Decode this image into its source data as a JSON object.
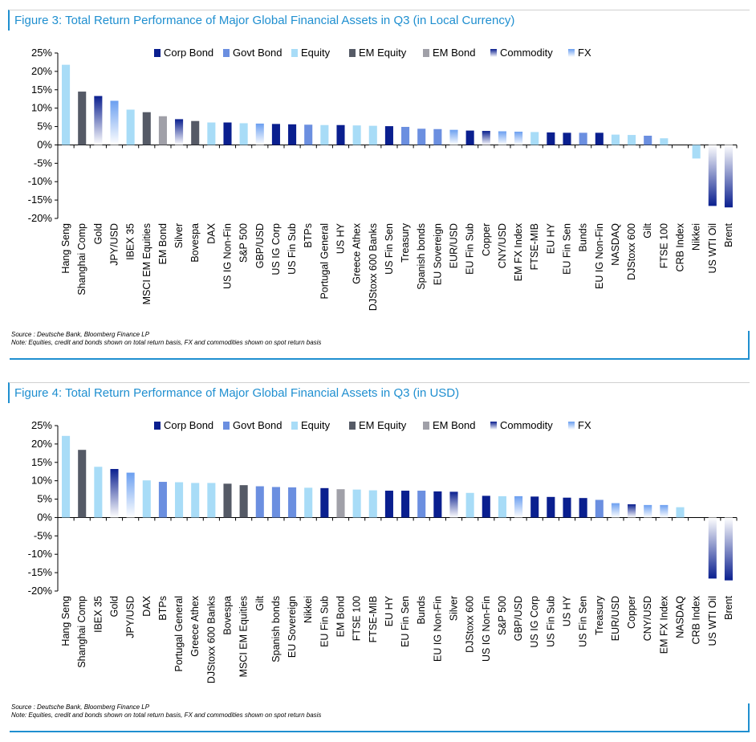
{
  "colors": {
    "Corp Bond": "#0a1f8f",
    "Govt Bond": "#6b8fe0",
    "Equity": "#a8dcf7",
    "EM Equity": "#555a66",
    "EM Bond": "#a0a0a8",
    "Commodity": "#0a1f8f",
    "FX": "#6b9ff0",
    "title": "#1f8fd0"
  },
  "legend": [
    "Corp Bond",
    "Govt Bond",
    "Equity",
    "EM Equity",
    "EM Bond",
    "Commodity",
    "FX"
  ],
  "figures": [
    {
      "title": "Figure 3: Total Return Performance of Major Global Financial Assets in Q3 (in Local Currency)",
      "source": "Source : Deutsche Bank, Bloomberg Finance LP",
      "note": "Note: Equities, credit and bonds shown on total return basis, FX and commodities shown on spot return basis"
    },
    {
      "title": "Figure 4: Total Return Performance of Major Global Financial Assets in Q3 (in USD)",
      "source": "Source : Deutsche Bank, Bloomberg Finance LP",
      "note": "Note: Equities, credit and bonds shown on total return basis, FX and commodities shown on spot return basis"
    }
  ],
  "chart_data": [
    {
      "type": "bar",
      "title": "Figure 3: Total Return Performance of Major Global Financial Assets in Q3 (in Local Currency)",
      "ylim": [
        -20,
        25
      ],
      "yticks": [
        "25%",
        "20%",
        "15%",
        "10%",
        "5%",
        "0%",
        "-5%",
        "-10%",
        "-15%",
        "-20%"
      ],
      "legend_position": "top",
      "categories": [
        "Hang Seng",
        "Shanghai Comp",
        "Gold",
        "JPY/USD",
        "IBEX 35",
        "MSCI EM Equities",
        "EM Bond",
        "Silver",
        "Bovespa",
        "DAX",
        "US IG Non-Fin",
        "S&P 500",
        "GBP/USD",
        "US IG Corp",
        "US Fin Sub",
        "BTPs",
        "Portugal General",
        "US HY",
        "Greece Athex",
        "DJStoxx 600 Banks",
        "US Fin Sen",
        "Treasury",
        "Spanish bonds",
        "EU Sovereign",
        "EUR/USD",
        "EU Fin Sub",
        "Copper",
        "CNY/USD",
        "EM FX Index",
        "FTSE-MIB",
        "EU HY",
        "EU Fin Sen",
        "Bunds",
        "EU IG Non-Fin",
        "NASDAQ",
        "DJStoxx 600",
        "Gilt",
        "FTSE 100",
        "CRB Index",
        "Nikkei",
        "US WTI Oil",
        "Brent"
      ],
      "values": [
        21.8,
        14.5,
        13.3,
        12.0,
        9.6,
        8.9,
        7.8,
        7.0,
        6.5,
        6.1,
        6.1,
        5.9,
        5.8,
        5.7,
        5.6,
        5.5,
        5.4,
        5.4,
        5.3,
        5.2,
        5.1,
        4.9,
        4.4,
        4.3,
        4.1,
        3.9,
        3.8,
        3.7,
        3.6,
        3.5,
        3.4,
        3.3,
        3.3,
        3.3,
        2.8,
        2.7,
        2.5,
        1.8,
        0.0,
        -3.7,
        -16.6,
        -17.0
      ],
      "classes": [
        "Equity",
        "EM Equity",
        "Commodity",
        "FX",
        "Equity",
        "EM Equity",
        "EM Bond",
        "Commodity",
        "EM Equity",
        "Equity",
        "Corp Bond",
        "Equity",
        "FX",
        "Corp Bond",
        "Corp Bond",
        "Govt Bond",
        "Equity",
        "Corp Bond",
        "Equity",
        "Equity",
        "Corp Bond",
        "Govt Bond",
        "Govt Bond",
        "Govt Bond",
        "FX",
        "Corp Bond",
        "Commodity",
        "FX",
        "FX",
        "Equity",
        "Corp Bond",
        "Corp Bond",
        "Govt Bond",
        "Corp Bond",
        "Equity",
        "Equity",
        "Govt Bond",
        "Equity",
        "Commodity",
        "Equity",
        "Commodity",
        "Commodity"
      ]
    },
    {
      "type": "bar",
      "title": "Figure 4: Total Return Performance of Major Global Financial Assets in Q3 (in USD)",
      "ylim": [
        -20,
        25
      ],
      "yticks": [
        "25%",
        "20%",
        "15%",
        "10%",
        "5%",
        "0%",
        "-5%",
        "-10%",
        "-15%",
        "-20%"
      ],
      "legend_position": "top",
      "categories": [
        "Hang Seng",
        "Shanghai Comp",
        "IBEX 35",
        "Gold",
        "JPY/USD",
        "DAX",
        "BTPs",
        "Portugal General",
        "Greece Athex",
        "DJStoxx 600 Banks",
        "Bovespa",
        "MSCI EM Equities",
        "Gilt",
        "Spanish bonds",
        "EU Sovereign",
        "Nikkei",
        "EU Fin Sub",
        "EM Bond",
        "FTSE 100",
        "FTSE-MIB",
        "EU HY",
        "EU Fin Sen",
        "Bunds",
        "EU IG Non-Fin",
        "Silver",
        "DJStoxx 600",
        "US IG Non-Fin",
        "S&P 500",
        "GBP/USD",
        "US IG Corp",
        "US Fin Sub",
        "US HY",
        "US Fin Sen",
        "Treasury",
        "EUR/USD",
        "Copper",
        "CNY/USD",
        "EM FX Index",
        "NASDAQ",
        "CRB Index",
        "US WTI Oil",
        "Brent"
      ],
      "values": [
        22.2,
        18.4,
        13.8,
        13.2,
        12.2,
        10.1,
        9.7,
        9.6,
        9.4,
        9.4,
        9.2,
        8.8,
        8.5,
        8.3,
        8.2,
        8.1,
        8.0,
        7.7,
        7.6,
        7.4,
        7.3,
        7.3,
        7.3,
        7.1,
        7.0,
        6.7,
        5.9,
        5.8,
        5.8,
        5.7,
        5.6,
        5.4,
        5.3,
        4.8,
        3.9,
        3.6,
        3.4,
        3.4,
        2.8,
        0.0,
        -16.6,
        -17.1
      ],
      "classes": [
        "Equity",
        "EM Equity",
        "Equity",
        "Commodity",
        "FX",
        "Equity",
        "Govt Bond",
        "Equity",
        "Equity",
        "Equity",
        "EM Equity",
        "EM Equity",
        "Govt Bond",
        "Govt Bond",
        "Govt Bond",
        "Equity",
        "Corp Bond",
        "EM Bond",
        "Equity",
        "Equity",
        "Corp Bond",
        "Corp Bond",
        "Govt Bond",
        "Corp Bond",
        "Commodity",
        "Equity",
        "Corp Bond",
        "Equity",
        "FX",
        "Corp Bond",
        "Corp Bond",
        "Corp Bond",
        "Corp Bond",
        "Govt Bond",
        "FX",
        "Commodity",
        "FX",
        "FX",
        "Equity",
        "Commodity",
        "Commodity",
        "Commodity"
      ]
    }
  ]
}
